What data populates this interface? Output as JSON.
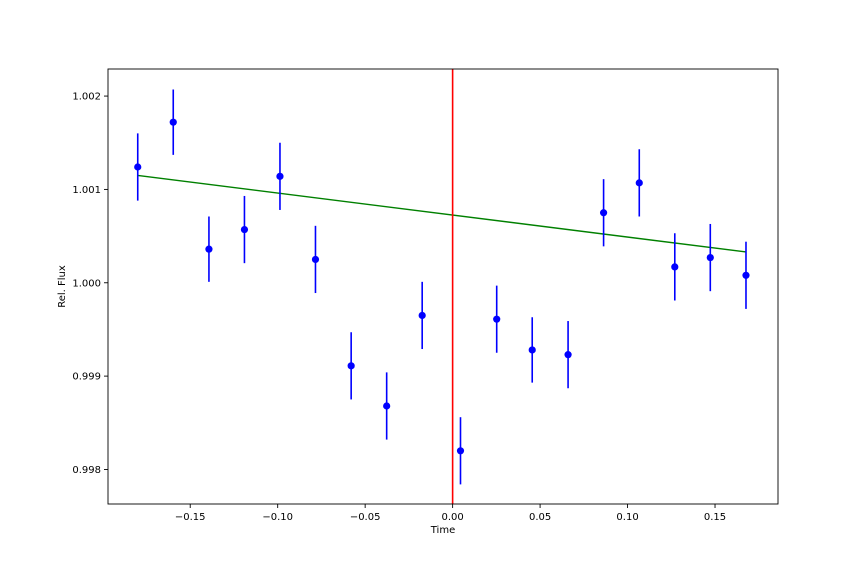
{
  "chart_data": {
    "type": "scatter",
    "title": "",
    "xlabel": "Time",
    "ylabel": "Rel. Flux",
    "xlim": [
      -0.197,
      0.186
    ],
    "ylim": [
      0.99763,
      1.00229
    ],
    "xticks": [
      -0.15,
      -0.1,
      -0.05,
      0.0,
      0.05,
      0.1,
      0.15
    ],
    "xtick_labels": [
      "−0.15",
      "−0.10",
      "−0.05",
      "0.00",
      "0.05",
      "0.10",
      "0.15"
    ],
    "yticks": [
      0.998,
      0.999,
      1.0,
      1.001,
      1.002
    ],
    "ytick_labels": [
      "0.998",
      "0.999",
      "1.000",
      "1.001",
      "1.002"
    ],
    "grid": false,
    "legend": "none",
    "series": [
      {
        "kind": "errorbar",
        "color": "#0000ff",
        "x": [
          -0.18,
          -0.1597,
          -0.1393,
          -0.119,
          -0.0987,
          -0.0784,
          -0.058,
          -0.0377,
          -0.0174,
          0.0045,
          0.0252,
          0.0455,
          0.066,
          0.0863,
          0.1067,
          0.127,
          0.1473,
          0.1677
        ],
        "y": [
          1.00124,
          1.00172,
          1.00036,
          1.00057,
          1.00114,
          1.00025,
          0.99911,
          0.99868,
          0.99965,
          0.9982,
          0.99961,
          0.99928,
          0.99923,
          1.00075,
          1.00107,
          1.00017,
          1.00027,
          1.00008
        ],
        "yerr": [
          0.00036,
          0.00035,
          0.00035,
          0.00036,
          0.00036,
          0.00036,
          0.00036,
          0.00036,
          0.00036,
          0.00036,
          0.00036,
          0.00035,
          0.00036,
          0.00036,
          0.00036,
          0.00036,
          0.00036,
          0.00036
        ]
      },
      {
        "kind": "line",
        "color": "#008000",
        "x": [
          -0.18,
          0.1677
        ],
        "y": [
          1.00115,
          1.00033
        ]
      }
    ],
    "vlines": [
      {
        "x": 0.0,
        "color": "#ff0000"
      }
    ]
  }
}
